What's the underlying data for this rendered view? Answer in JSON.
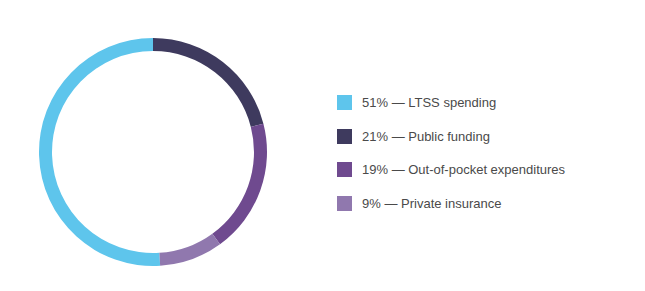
{
  "chart_data": {
    "type": "pie",
    "categories": [
      "51% — LTSS spending",
      "21% — Public funding",
      "19% — Out-of-pocket expenditures",
      "9% — Private insurance"
    ],
    "values": [
      51,
      21,
      19,
      9
    ],
    "colors": [
      "#5ec5ec",
      "#3e3a5e",
      "#6f4a8f",
      "#9078ae"
    ],
    "legend": "right"
  }
}
